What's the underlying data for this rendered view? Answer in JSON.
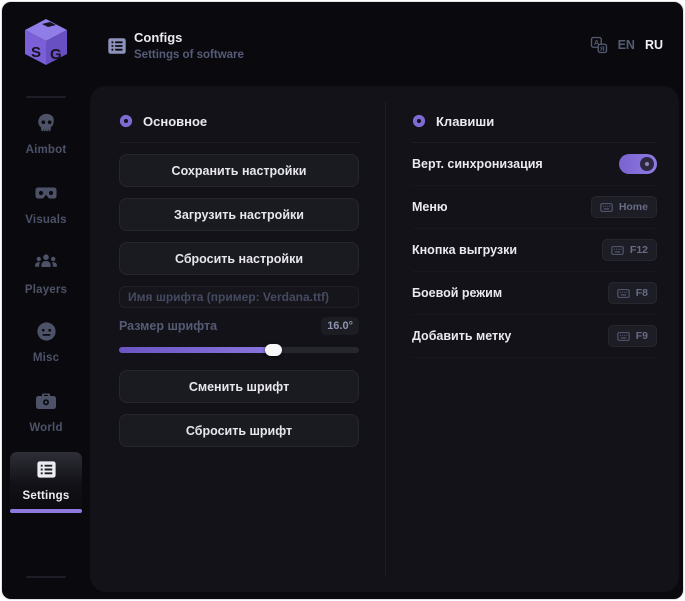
{
  "brand": {
    "logo_s": "S",
    "logo_g": "G"
  },
  "header": {
    "title": "Configs",
    "subtitle": "Settings of software",
    "languages": {
      "en": "EN",
      "ru": "RU",
      "selected": "RU"
    }
  },
  "sidebar": {
    "items": [
      {
        "label": "Aimbot",
        "icon": "skull-icon",
        "active": false
      },
      {
        "label": "Visuals",
        "icon": "goggles-icon",
        "active": false
      },
      {
        "label": "Players",
        "icon": "players-icon",
        "active": false
      },
      {
        "label": "Misc",
        "icon": "face-icon",
        "active": false
      },
      {
        "label": "World",
        "icon": "case-icon",
        "active": false
      },
      {
        "label": "Settings",
        "icon": "list-icon",
        "active": true
      }
    ]
  },
  "main": {
    "left": {
      "section_title": "Основное",
      "save_button": "Сохранить настройки",
      "load_button": "Загрузить настройки",
      "reset_button": "Сбросить настройки",
      "font_name_placeholder": "Имя шрифта (пример: Verdana.ttf)",
      "font_size_label": "Размер шрифта",
      "font_size_value": "16.0°",
      "slider_percent": 64,
      "change_font_button": "Сменить шрифт",
      "reset_font_button": "Сбросить шрифт"
    },
    "right": {
      "section_title": "Клавиши",
      "vsync_label": "Верт. синхронизация",
      "vsync_on": true,
      "hotkeys": [
        {
          "label": "Меню",
          "key": "Home"
        },
        {
          "label": "Кнопка выгрузки",
          "key": "F12"
        },
        {
          "label": "Боевой режим",
          "key": "F8"
        },
        {
          "label": "Добавить метку",
          "key": "F9"
        }
      ]
    }
  },
  "colors": {
    "accent": "#8d79e0",
    "panel_bg": "#121218",
    "window_bg": "#0a0a0e",
    "text": "#e9e9ef",
    "dim_text": "#565b74"
  }
}
